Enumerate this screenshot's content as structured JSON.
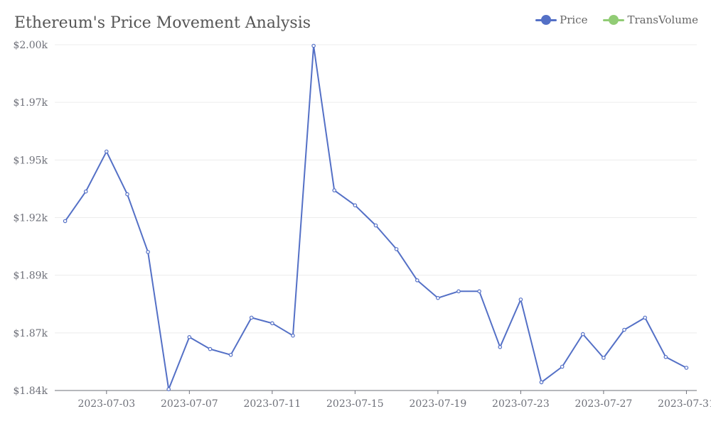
{
  "title": "Ethereum's Price Movement Analysis",
  "legend": [
    {
      "name": "Price",
      "color": "#5470c6"
    },
    {
      "name": "TransVolume",
      "color": "#91cc75"
    }
  ],
  "chart_data": {
    "type": "line",
    "title": "Ethereum's Price Movement Analysis",
    "xlabel": "",
    "ylabel": "",
    "x": [
      "2023-07-01",
      "2023-07-02",
      "2023-07-03",
      "2023-07-04",
      "2023-07-05",
      "2023-07-06",
      "2023-07-07",
      "2023-07-08",
      "2023-07-09",
      "2023-07-10",
      "2023-07-11",
      "2023-07-12",
      "2023-07-13",
      "2023-07-14",
      "2023-07-15",
      "2023-07-16",
      "2023-07-17",
      "2023-07-18",
      "2023-07-19",
      "2023-07-20",
      "2023-07-21",
      "2023-07-22",
      "2023-07-23",
      "2023-07-24",
      "2023-07-25",
      "2023-07-26",
      "2023-07-27",
      "2023-07-28",
      "2023-07-29",
      "2023-07-30",
      "2023-07-31"
    ],
    "x_tick_labels": [
      "2023-07-03",
      "2023-07-07",
      "2023-07-11",
      "2023-07-15",
      "2023-07-19",
      "2023-07-23",
      "2023-07-27",
      "2023-07-31"
    ],
    "y_tick_labels": [
      "$1.84k",
      "$1.87k",
      "$1.89k",
      "$1.92k",
      "$1.95k",
      "$1.97k",
      "$2.00k"
    ],
    "ylim": [
      1840,
      2000
    ],
    "series": [
      {
        "name": "Price",
        "color": "#5470c6",
        "values": [
          1918.4,
          1932.1,
          1950.6,
          1930.8,
          1904.1,
          1840.6,
          1864.7,
          1859.2,
          1856.5,
          1873.7,
          1871.1,
          1865.4,
          1999.5,
          1932.6,
          1925.7,
          1916.4,
          1905.4,
          1891.0,
          1882.8,
          1885.9,
          1885.9,
          1860.1,
          1882.1,
          1843.8,
          1851.0,
          1866.1,
          1855.1,
          1868.1,
          1873.7,
          1855.5,
          1850.5
        ]
      }
    ],
    "legend": [
      "Price",
      "TransVolume"
    ],
    "grid": true,
    "legend_position": "top-right"
  }
}
